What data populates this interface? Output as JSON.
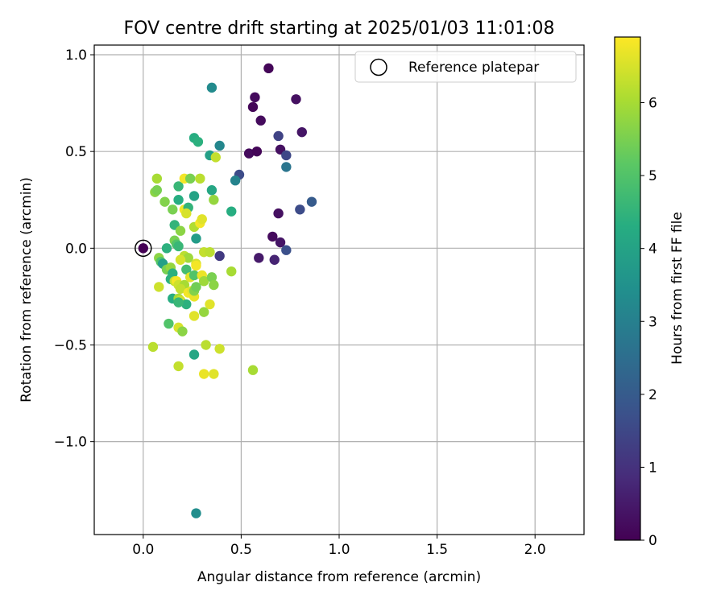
{
  "chart_data": {
    "type": "scatter",
    "title": "FOV centre drift starting at 2025/01/03 11:01:08",
    "xlabel": "Angular distance from reference (arcmin)",
    "ylabel": "Rotation from reference (arcmin)",
    "xlim": [
      -0.25,
      2.25
    ],
    "ylim": [
      -1.48,
      1.05
    ],
    "xticks": [
      0.0,
      0.5,
      1.0,
      1.5,
      2.0
    ],
    "xtick_labels": [
      "0.0",
      "0.5",
      "1.0",
      "1.5",
      "2.0"
    ],
    "yticks": [
      -1.0,
      -0.5,
      0.0,
      0.5,
      1.0
    ],
    "ytick_labels": [
      "−1.0",
      "−0.5",
      "0.0",
      "0.5",
      "1.0"
    ],
    "grid": true,
    "legend": {
      "position": "upper-right",
      "entries": [
        "Reference platepar"
      ]
    },
    "colorbar": {
      "label": "Hours from first FF file",
      "colormap": "viridis",
      "range": [
        0,
        6.9
      ],
      "ticks": [
        0,
        1,
        2,
        3,
        4,
        5,
        6
      ],
      "tick_labels": [
        "0",
        "1",
        "2",
        "3",
        "4",
        "5",
        "6"
      ]
    },
    "reference_point": {
      "name": "Reference platepar",
      "x": 0.0,
      "y": 0.0
    },
    "series": [
      {
        "marker": "circle",
        "points": [
          [
            0.64,
            0.93,
            0.1
          ],
          [
            0.57,
            0.78,
            0.2
          ],
          [
            0.56,
            0.73,
            0.1
          ],
          [
            0.6,
            0.66,
            0.2
          ],
          [
            0.78,
            0.77,
            0.3
          ],
          [
            0.81,
            0.6,
            0.4
          ],
          [
            0.69,
            0.58,
            1.4
          ],
          [
            0.54,
            0.49,
            0.2
          ],
          [
            0.58,
            0.5,
            0.1
          ],
          [
            0.7,
            0.51,
            0.3
          ],
          [
            0.73,
            0.48,
            1.5
          ],
          [
            0.73,
            0.42,
            2.7
          ],
          [
            0.49,
            0.38,
            1.6
          ],
          [
            0.47,
            0.35,
            3.1
          ],
          [
            0.86,
            0.24,
            2.0
          ],
          [
            0.8,
            0.2,
            1.6
          ],
          [
            0.69,
            0.18,
            0.3
          ],
          [
            0.66,
            0.06,
            0.2
          ],
          [
            0.7,
            0.03,
            0.4
          ],
          [
            0.73,
            -0.01,
            1.7
          ],
          [
            0.59,
            -0.05,
            0.5
          ],
          [
            0.67,
            -0.06,
            0.7
          ],
          [
            0.39,
            -0.04,
            1.2
          ],
          [
            0.35,
            0.83,
            3.3
          ],
          [
            0.26,
            0.57,
            4.3
          ],
          [
            0.28,
            0.55,
            4.4
          ],
          [
            0.34,
            0.48,
            3.9
          ],
          [
            0.39,
            0.53,
            3.2
          ],
          [
            0.37,
            0.47,
            6.3
          ],
          [
            0.06,
            0.29,
            5.7
          ],
          [
            0.07,
            0.3,
            5.5
          ],
          [
            0.07,
            0.36,
            6.0
          ],
          [
            0.11,
            0.24,
            5.6
          ],
          [
            0.18,
            0.32,
            4.6
          ],
          [
            0.21,
            0.36,
            6.8
          ],
          [
            0.24,
            0.36,
            5.5
          ],
          [
            0.29,
            0.36,
            6.2
          ],
          [
            0.35,
            0.3,
            4.1
          ],
          [
            0.26,
            0.27,
            4.0
          ],
          [
            0.36,
            0.25,
            5.8
          ],
          [
            0.45,
            0.19,
            4.3
          ],
          [
            0.18,
            0.25,
            4.3
          ],
          [
            0.15,
            0.2,
            5.5
          ],
          [
            0.21,
            0.2,
            6.8
          ],
          [
            0.23,
            0.21,
            4.5
          ],
          [
            0.22,
            0.18,
            6.5
          ],
          [
            0.26,
            0.11,
            6.1
          ],
          [
            0.29,
            0.13,
            6.8
          ],
          [
            0.3,
            0.15,
            6.6
          ],
          [
            0.16,
            0.12,
            4.5
          ],
          [
            0.19,
            0.09,
            5.7
          ],
          [
            0.16,
            0.04,
            5.5
          ],
          [
            0.17,
            0.02,
            5.0
          ],
          [
            0.27,
            0.05,
            3.8
          ],
          [
            0.12,
            0.0,
            4.4
          ],
          [
            0.18,
            0.01,
            4.6
          ],
          [
            0.08,
            -0.05,
            5.7
          ],
          [
            0.09,
            -0.07,
            5.0
          ],
          [
            0.1,
            -0.08,
            3.9
          ],
          [
            0.21,
            -0.04,
            6.2
          ],
          [
            0.23,
            -0.05,
            5.9
          ],
          [
            0.19,
            -0.06,
            6.5
          ],
          [
            0.31,
            -0.02,
            6.3
          ],
          [
            0.34,
            -0.02,
            6.2
          ],
          [
            0.12,
            -0.11,
            5.5
          ],
          [
            0.22,
            -0.11,
            4.8
          ],
          [
            0.27,
            -0.08,
            6.5
          ],
          [
            0.27,
            -0.09,
            6.8
          ],
          [
            0.14,
            -0.1,
            5.8
          ],
          [
            0.15,
            -0.13,
            4.4
          ],
          [
            0.14,
            -0.16,
            4.4
          ],
          [
            0.16,
            -0.17,
            6.3
          ],
          [
            0.17,
            -0.17,
            6.8
          ],
          [
            0.18,
            -0.19,
            6.4
          ],
          [
            0.21,
            -0.19,
            6.0
          ],
          [
            0.08,
            -0.2,
            6.4
          ],
          [
            0.24,
            -0.15,
            6.6
          ],
          [
            0.26,
            -0.14,
            5.0
          ],
          [
            0.3,
            -0.14,
            6.7
          ],
          [
            0.31,
            -0.17,
            5.9
          ],
          [
            0.35,
            -0.15,
            5.5
          ],
          [
            0.36,
            -0.19,
            5.7
          ],
          [
            0.19,
            -0.21,
            6.3
          ],
          [
            0.23,
            -0.23,
            6.8
          ],
          [
            0.25,
            -0.22,
            6.6
          ],
          [
            0.26,
            -0.25,
            6.7
          ],
          [
            0.26,
            -0.22,
            5.6
          ],
          [
            0.27,
            -0.2,
            5.4
          ],
          [
            0.15,
            -0.26,
            4.3
          ],
          [
            0.18,
            -0.26,
            6.0
          ],
          [
            0.19,
            -0.27,
            6.4
          ],
          [
            0.22,
            -0.29,
            4.4
          ],
          [
            0.18,
            -0.28,
            4.6
          ],
          [
            0.31,
            -0.33,
            5.8
          ],
          [
            0.34,
            -0.29,
            6.6
          ],
          [
            0.26,
            -0.35,
            6.6
          ],
          [
            0.13,
            -0.39,
            5.0
          ],
          [
            0.18,
            -0.41,
            6.5
          ],
          [
            0.2,
            -0.43,
            5.7
          ],
          [
            0.32,
            -0.5,
            6.2
          ],
          [
            0.39,
            -0.52,
            6.4
          ],
          [
            0.05,
            -0.51,
            6.2
          ],
          [
            0.26,
            -0.55,
            4.1
          ],
          [
            0.18,
            -0.61,
            6.3
          ],
          [
            0.31,
            -0.65,
            6.7
          ],
          [
            0.36,
            -0.65,
            6.6
          ],
          [
            0.56,
            -0.63,
            6.0
          ],
          [
            0.45,
            -0.12,
            6.0
          ],
          [
            0.27,
            -1.37,
            3.4
          ]
        ]
      }
    ]
  }
}
